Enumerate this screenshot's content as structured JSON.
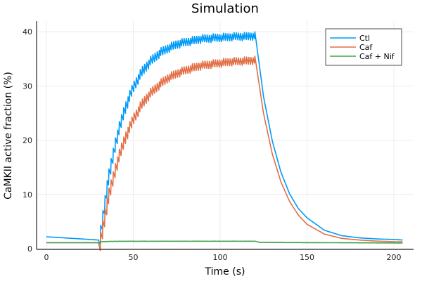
{
  "chart_data": {
    "type": "line",
    "title": "Simulation",
    "xlabel": "Time (s)",
    "ylabel": "CaMKII active fraction (%)",
    "xlim": [
      -5,
      212
    ],
    "ylim": [
      -0.5,
      42
    ],
    "xticks": [
      "0",
      "50",
      "100",
      "150",
      "200"
    ],
    "yticks": [
      "0",
      "10",
      "20",
      "30",
      "40"
    ],
    "grid": true,
    "legend_position": "top-right",
    "series": [
      {
        "name": "Ctl",
        "color": "#009AFA",
        "oscillation_amplitude": 1.6,
        "oscillation_window": [
          30,
          120
        ],
        "x": [
          0,
          10,
          20,
          30,
          35,
          40,
          45,
          50,
          55,
          60,
          65,
          70,
          75,
          80,
          85,
          90,
          95,
          100,
          105,
          110,
          115,
          120,
          125,
          130,
          135,
          140,
          145,
          150,
          160,
          170,
          180,
          190,
          200,
          205
        ],
        "y": [
          2.2,
          2.0,
          1.8,
          1.6,
          13.1,
          21.2,
          26.8,
          30.8,
          33.6,
          35.5,
          36.9,
          37.8,
          38.5,
          38.9,
          39.2,
          39.5,
          39.6,
          39.7,
          39.8,
          39.9,
          39.9,
          40.0,
          28.0,
          19.9,
          14.1,
          10.1,
          7.4,
          5.7,
          3.4,
          2.4,
          2.0,
          1.8,
          1.7,
          1.6
        ]
      },
      {
        "name": "Caf",
        "color": "#E26F46",
        "oscillation_amplitude": 1.6,
        "oscillation_window": [
          30,
          120
        ],
        "x": [
          0,
          10,
          20,
          30,
          35,
          40,
          45,
          50,
          55,
          60,
          65,
          70,
          75,
          80,
          85,
          90,
          95,
          100,
          105,
          110,
          115,
          120,
          125,
          130,
          135,
          140,
          145,
          150,
          160,
          170,
          180,
          190,
          200,
          205
        ],
        "y": [
          1.1,
          1.1,
          1.1,
          1.1,
          9.9,
          16.4,
          21.3,
          24.9,
          27.6,
          29.6,
          31.1,
          32.3,
          33.1,
          33.7,
          34.2,
          34.6,
          34.8,
          35.0,
          35.2,
          35.3,
          35.4,
          35.5,
          24.9,
          17.5,
          12.3,
          8.7,
          6.2,
          4.5,
          2.7,
          1.9,
          1.6,
          1.4,
          1.3,
          1.3
        ]
      },
      {
        "name": "Caf + Nif",
        "color": "#3DA44D",
        "oscillation_amplitude": 0.05,
        "oscillation_window": [
          30,
          120
        ],
        "x": [
          0,
          30,
          32,
          40,
          120,
          123,
          205
        ],
        "y": [
          1.1,
          1.1,
          1.35,
          1.4,
          1.4,
          1.15,
          1.05
        ]
      }
    ]
  }
}
